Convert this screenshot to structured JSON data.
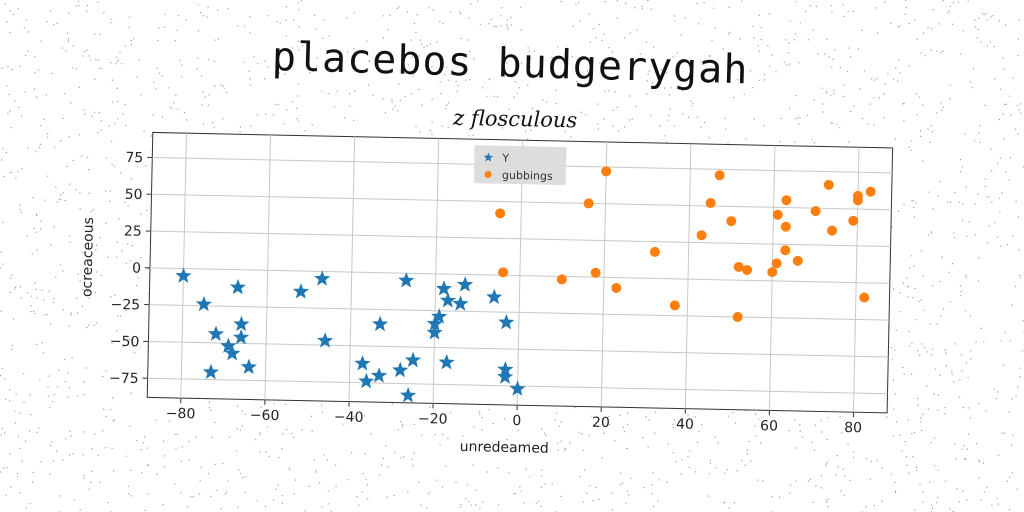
{
  "suptitle": "placebos budgerygah",
  "chart_data": {
    "type": "scatter",
    "title": "z flosculous",
    "xlabel": "unredeamed",
    "ylabel": "ocreaceous",
    "xlim": [
      -88,
      88
    ],
    "ylim": [
      -88,
      92
    ],
    "xticks": [
      -80,
      -60,
      -40,
      -20,
      0,
      20,
      40,
      60,
      80
    ],
    "yticks": [
      -75,
      -50,
      -25,
      0,
      25,
      50,
      75
    ],
    "grid": true,
    "legend_position": "top-center",
    "series": [
      {
        "name": "Y",
        "marker": "star",
        "color": "#1f77b4",
        "points": [
          [
            -80,
            -5
          ],
          [
            -75,
            -24
          ],
          [
            -73,
            -70
          ],
          [
            -72,
            -44
          ],
          [
            -69,
            -52
          ],
          [
            -68,
            -57
          ],
          [
            -67,
            -12
          ],
          [
            -66,
            -37
          ],
          [
            -66,
            -46
          ],
          [
            -64,
            -66
          ],
          [
            -52,
            -14
          ],
          [
            -47,
            -5
          ],
          [
            -46,
            -47
          ],
          [
            -37,
            -62
          ],
          [
            -36,
            -74
          ],
          [
            -33,
            -35
          ],
          [
            -33,
            -70
          ],
          [
            -28,
            -66
          ],
          [
            -27,
            -5
          ],
          [
            -26,
            -83
          ],
          [
            -25,
            -59
          ],
          [
            -20,
            -40
          ],
          [
            -20,
            -34
          ],
          [
            -19,
            -29
          ],
          [
            -18,
            -10
          ],
          [
            -17,
            -18
          ],
          [
            -17,
            -60
          ],
          [
            -14,
            -20
          ],
          [
            -13,
            -7
          ],
          [
            -6,
            -15
          ],
          [
            -3,
            -64
          ],
          [
            -3,
            -32
          ],
          [
            -3,
            -69
          ],
          [
            0,
            -77
          ]
        ]
      },
      {
        "name": "gubbings",
        "marker": "circle",
        "color": "#ff7f0e",
        "points": [
          [
            -5,
            42
          ],
          [
            -4,
            2
          ],
          [
            10,
            -2
          ],
          [
            16,
            50
          ],
          [
            18,
            3
          ],
          [
            20,
            72
          ],
          [
            23,
            -7
          ],
          [
            32,
            18
          ],
          [
            37,
            -18
          ],
          [
            43,
            30
          ],
          [
            45,
            52
          ],
          [
            47,
            71
          ],
          [
            50,
            40
          ],
          [
            52,
            9
          ],
          [
            52,
            -25
          ],
          [
            54,
            7
          ],
          [
            60,
            6
          ],
          [
            61,
            45
          ],
          [
            61,
            12
          ],
          [
            63,
            21
          ],
          [
            63,
            55
          ],
          [
            63,
            37
          ],
          [
            66,
            14
          ],
          [
            70,
            48
          ],
          [
            73,
            66
          ],
          [
            74,
            35
          ],
          [
            79,
            42
          ],
          [
            80,
            59
          ],
          [
            80,
            56
          ],
          [
            82,
            -10
          ],
          [
            83,
            62
          ]
        ]
      }
    ]
  }
}
